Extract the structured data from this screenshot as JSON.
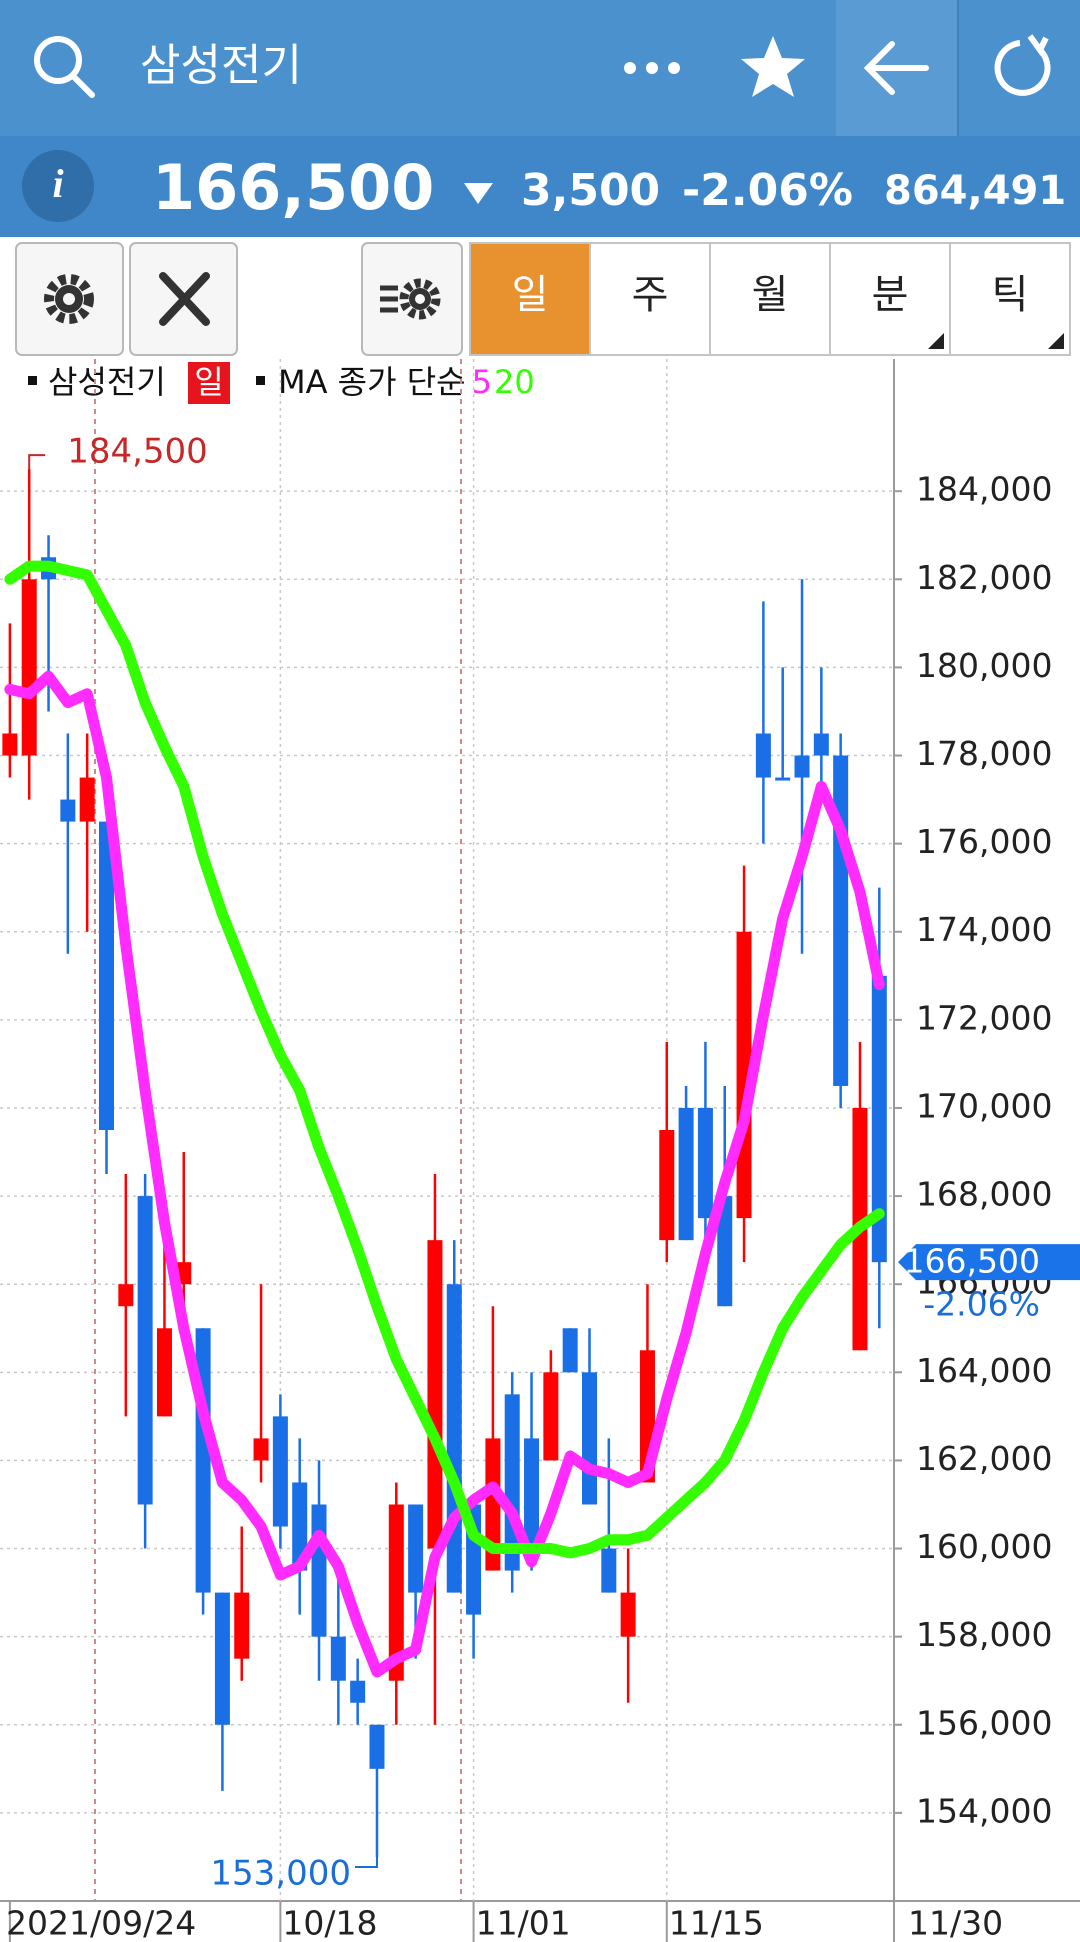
{
  "header": {
    "title": "삼성전기"
  },
  "quote": {
    "info_icon": "i",
    "price": "166,500",
    "change": "3,500",
    "change_pct": "-2.06%",
    "volume": "864,491"
  },
  "tabs": [
    "일",
    "주",
    "월",
    "분",
    "틱"
  ],
  "legend": {
    "symbol": "삼성전기",
    "period": "일",
    "indicator": "MA 종가 단순"
  },
  "chart_data": {
    "type": "candlestick",
    "categories": [
      "2021/09/24",
      null,
      null,
      null,
      null,
      null,
      null,
      null,
      null,
      null,
      null,
      null,
      null,
      null,
      "10/18",
      null,
      null,
      null,
      null,
      null,
      null,
      null,
      null,
      null,
      "11/01",
      null,
      null,
      null,
      null,
      null,
      null,
      null,
      null,
      null,
      "11/15",
      null,
      null,
      null,
      null,
      null,
      null,
      null,
      null,
      null,
      null,
      "11/30"
    ],
    "open": [
      178000,
      178000,
      182500,
      177000,
      176500,
      176500,
      165500,
      168000,
      163000,
      166000,
      165000,
      159000,
      157500,
      162000,
      163000,
      161500,
      161000,
      158000,
      157000,
      156000,
      157000,
      161000,
      160000,
      166000,
      161000,
      159500,
      163500,
      162500,
      162000,
      165000,
      164000,
      160000,
      158000,
      161500,
      167000,
      170000,
      170000,
      168000,
      167500,
      178500,
      177500,
      178000,
      178500,
      178000,
      164500,
      173000
    ],
    "high": [
      181000,
      184500,
      183000,
      178500,
      178500,
      176500,
      168500,
      168500,
      167500,
      169000,
      165000,
      159000,
      160500,
      166000,
      163500,
      162500,
      162000,
      159500,
      157500,
      156000,
      161500,
      161000,
      168500,
      167000,
      161000,
      165500,
      164000,
      164000,
      164500,
      165000,
      165000,
      162500,
      160000,
      166000,
      171500,
      170500,
      171500,
      170500,
      175500,
      181500,
      180000,
      182000,
      180000,
      178500,
      171500,
      175000
    ],
    "low": [
      177500,
      177000,
      179000,
      173500,
      174000,
      168500,
      163000,
      160000,
      163000,
      165000,
      158500,
      154500,
      157000,
      161500,
      160000,
      158500,
      157000,
      156000,
      156000,
      153000,
      156000,
      157500,
      156000,
      159000,
      157500,
      159500,
      159000,
      159500,
      162000,
      164000,
      161000,
      159000,
      156500,
      161500,
      166500,
      167000,
      167000,
      165500,
      166500,
      176000,
      177500,
      173500,
      177000,
      170000,
      164500,
      165000
    ],
    "close": [
      178500,
      182000,
      182000,
      176500,
      177500,
      169500,
      166000,
      161000,
      165000,
      166500,
      159000,
      156000,
      159000,
      162500,
      160500,
      159500,
      158000,
      157000,
      156500,
      155000,
      161000,
      159000,
      167000,
      159000,
      158500,
      162500,
      159500,
      160000,
      164000,
      164000,
      161000,
      159000,
      159000,
      164500,
      169500,
      167000,
      167500,
      165500,
      174000,
      177500,
      177500,
      177500,
      178000,
      170500,
      170000,
      166500
    ],
    "up_color": "#ff0000",
    "down_color": "#1a6fe6",
    "series": [
      {
        "name": "5",
        "color": "#ff2bff",
        "values": [
          179500,
          179400,
          179800,
          179200,
          179400,
          177500,
          173700,
          170400,
          167400,
          165000,
          163100,
          161500,
          161100,
          160500,
          159400,
          159600,
          160300,
          159600,
          158300,
          157200,
          157500,
          157700,
          159800,
          160700,
          161100,
          161400,
          160800,
          159700,
          160800,
          162100,
          161800,
          161700,
          161500,
          161700,
          163400,
          164900,
          166700,
          168300,
          169700,
          172100,
          174300,
          175700,
          177300,
          176300,
          174900,
          172800
        ]
      },
      {
        "name": "20",
        "color": "#33ff00",
        "values": [
          182000,
          182300,
          182300,
          182200,
          182100,
          181300,
          180500,
          179200,
          178200,
          177300,
          175700,
          174400,
          173300,
          172200,
          171200,
          170400,
          169100,
          168000,
          166800,
          165500,
          164300,
          163400,
          162500,
          161500,
          160300,
          160000,
          160000,
          160000,
          160000,
          159900,
          160000,
          160200,
          160200,
          160300,
          160700,
          161100,
          161500,
          162000,
          162900,
          164000,
          165000,
          165700,
          166300,
          166900,
          167300,
          167600
        ]
      }
    ],
    "ylim": [
      152000,
      187000
    ],
    "yticks": [
      {
        "value": 154000,
        "label": "154,000"
      },
      {
        "value": 156000,
        "label": "156,000"
      },
      {
        "value": 158000,
        "label": "158,000"
      },
      {
        "value": 160000,
        "label": "160,000"
      },
      {
        "value": 162000,
        "label": "162,000"
      },
      {
        "value": 164000,
        "label": "164,000"
      },
      {
        "value": 166000,
        "label": "166,000"
      },
      {
        "value": 168000,
        "label": "168,000"
      },
      {
        "value": 170000,
        "label": "170,000"
      },
      {
        "value": 172000,
        "label": "172,000"
      },
      {
        "value": 174000,
        "label": "174,000"
      },
      {
        "value": 176000,
        "label": "176,000"
      },
      {
        "value": 178000,
        "label": "178,000"
      },
      {
        "value": 180000,
        "label": "180,000"
      },
      {
        "value": 182000,
        "label": "182,000"
      },
      {
        "value": 184000,
        "label": "184,000"
      }
    ],
    "grid": true,
    "annotations": [
      {
        "value": 184500,
        "label": "184,500"
      },
      {
        "value": 153000,
        "label": "153,000"
      }
    ],
    "last_price": {
      "value": 166500,
      "label": "166,500"
    },
    "last_change": "-2.06%"
  }
}
